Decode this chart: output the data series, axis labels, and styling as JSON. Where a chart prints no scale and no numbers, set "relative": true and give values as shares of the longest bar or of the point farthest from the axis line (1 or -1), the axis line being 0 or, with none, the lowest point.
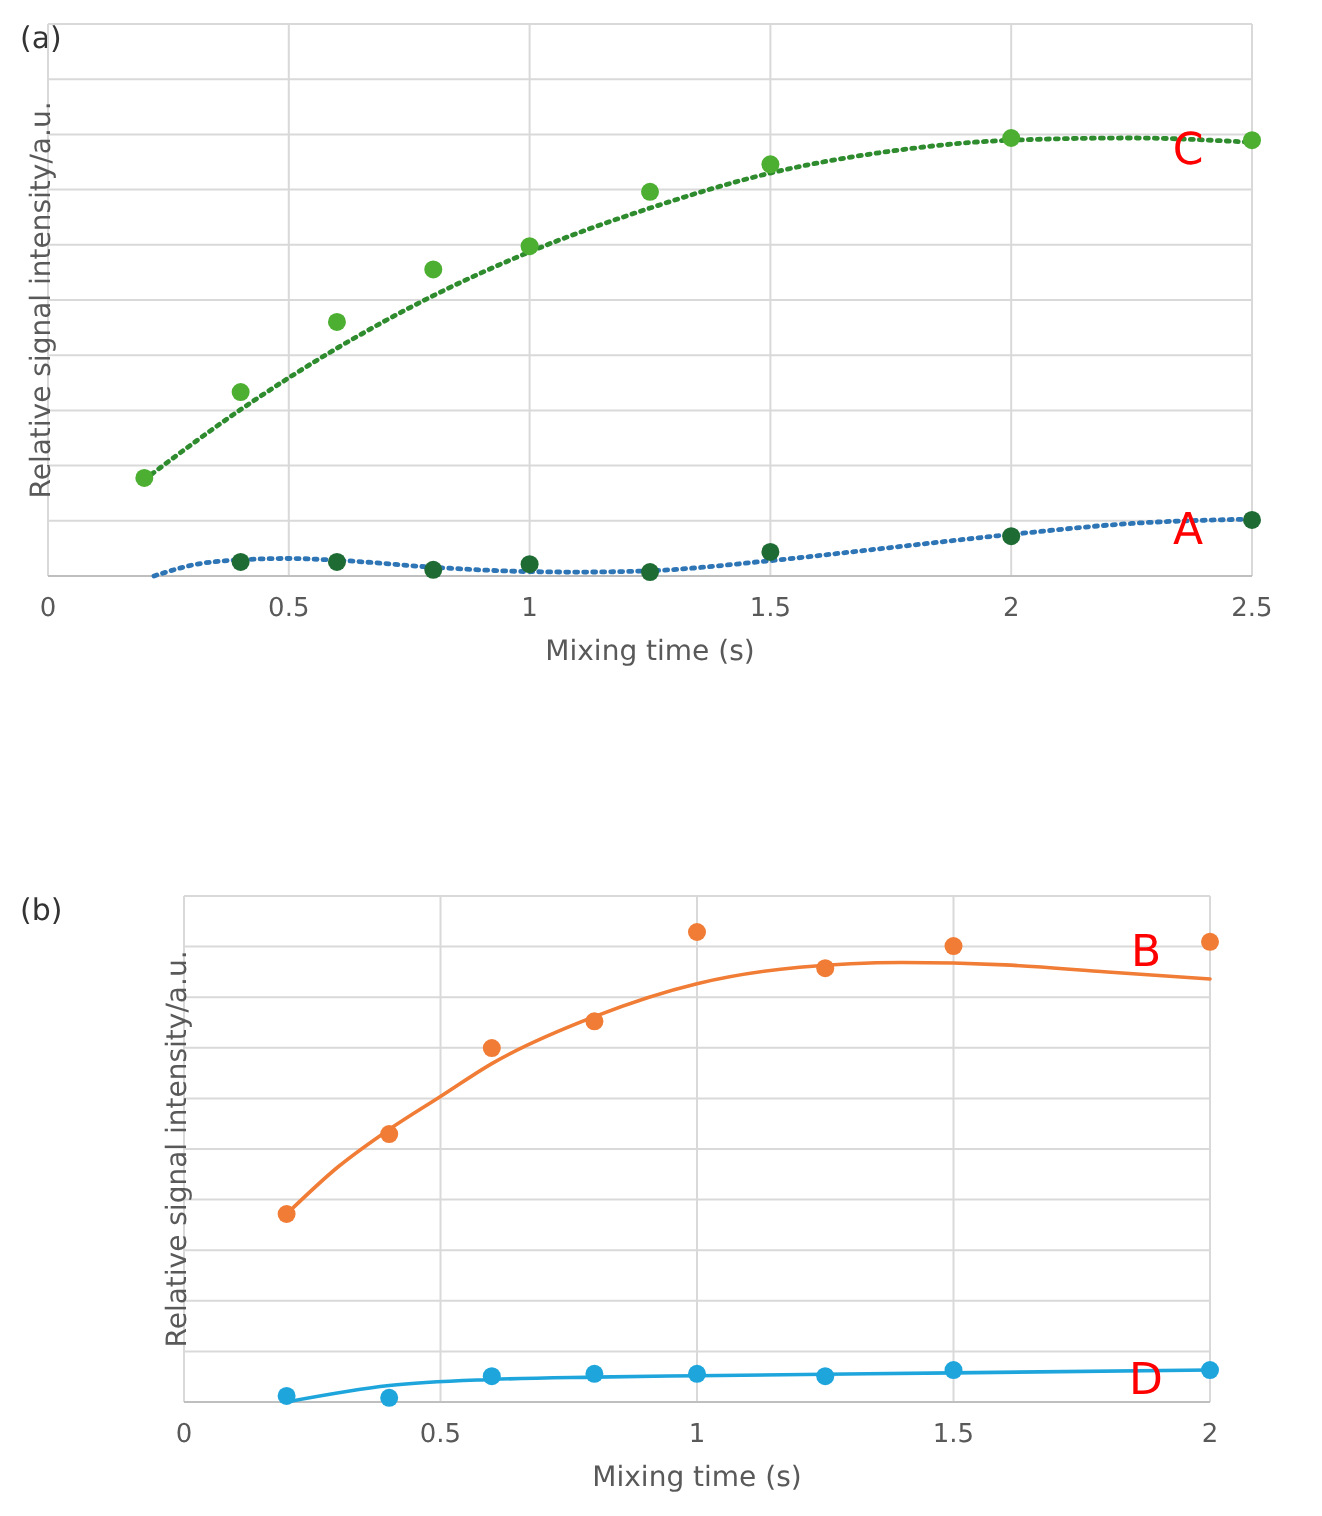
{
  "chart_data": [
    {
      "type": "scatter",
      "title": "(a)",
      "xlabel": "Mixing time (s)",
      "ylabel": "Relative signal intensity/a.u.",
      "relative": true,
      "xlim": [
        0,
        2.5
      ],
      "xticks": [
        0,
        0.5,
        1,
        1.5,
        2,
        2.5
      ],
      "tick_labels": "x",
      "grid": true,
      "legend": false,
      "marker": "circle",
      "series": [
        {
          "type": "line",
          "marker": "none",
          "line_style": "dotted",
          "color": "#2e8b2e",
          "x": [
            0.2,
            0.4,
            0.6,
            0.8,
            1.0,
            1.25,
            1.5,
            1.75,
            2.0,
            2.25,
            2.5
          ],
          "values": [
            0.22,
            0.38,
            0.52,
            0.64,
            0.74,
            0.84,
            0.92,
            0.97,
            0.995,
            1.0,
            0.99
          ]
        },
        {
          "type": "line",
          "marker": "none",
          "line_style": "dotted",
          "color": "#2e75b6",
          "x": [
            0.22,
            0.3,
            0.4,
            0.5,
            0.6,
            0.8,
            1.0,
            1.1,
            1.25,
            1.5,
            1.75,
            2.0,
            2.25,
            2.5
          ],
          "values": [
            0,
            0.025,
            0.037,
            0.04,
            0.036,
            0.02,
            0.01,
            0.009,
            0.012,
            0.035,
            0.065,
            0.095,
            0.12,
            0.13
          ]
        },
        {
          "name": "C",
          "color": "#4caf32",
          "x": [
            0.2,
            0.4,
            0.6,
            0.8,
            1.0,
            1.25,
            1.5,
            2.0,
            2.5
          ],
          "values": [
            0.224,
            0.42,
            0.58,
            0.7,
            0.753,
            0.877,
            0.94,
            1.0,
            0.995
          ]
        },
        {
          "name": "A",
          "color": "#1e6b34",
          "x": [
            0.4,
            0.6,
            0.8,
            1.0,
            1.25,
            1.5,
            2.0,
            2.5
          ],
          "values": [
            0.032,
            0.032,
            0.014,
            0.027,
            0.009,
            0.055,
            0.091,
            0.128
          ]
        }
      ]
    },
    {
      "type": "scatter",
      "title": "(b)",
      "xlabel": "Mixing time (s)",
      "ylabel": "Relative signal intensity/a.u.",
      "relative": true,
      "xlim": [
        0,
        2
      ],
      "xticks": [
        0,
        0.5,
        1,
        1.5,
        2
      ],
      "tick_labels": "x",
      "grid": true,
      "legend": false,
      "marker": "circle",
      "series": [
        {
          "type": "line",
          "marker": "none",
          "line_style": "solid",
          "color": "#f07c35",
          "x": [
            0.2,
            0.3,
            0.4,
            0.5,
            0.6,
            0.8,
            1.0,
            1.2,
            1.4,
            1.6,
            1.8,
            2.0
          ],
          "values": [
            0.4,
            0.5,
            0.58,
            0.65,
            0.72,
            0.82,
            0.89,
            0.925,
            0.935,
            0.93,
            0.915,
            0.9
          ]
        },
        {
          "type": "line",
          "marker": "none",
          "line_style": "solid",
          "color": "#1ea5dc",
          "x": [
            0.2,
            0.4,
            0.6,
            0.8,
            1.0,
            1.5,
            2.0
          ],
          "values": [
            0,
            0.035,
            0.048,
            0.053,
            0.056,
            0.062,
            0.068
          ]
        },
        {
          "name": "B",
          "color": "#f07c35",
          "x": [
            0.2,
            0.4,
            0.6,
            0.8,
            1.0,
            1.25,
            1.5,
            2.0
          ],
          "values": [
            0.4,
            0.57,
            0.753,
            0.81,
            1.0,
            0.923,
            0.97,
            0.979
          ]
        },
        {
          "name": "D",
          "color": "#1ea5dc",
          "x": [
            0.2,
            0.4,
            0.6,
            0.8,
            1.0,
            1.25,
            1.5,
            2.0
          ],
          "values": [
            0.013,
            0.009,
            0.055,
            0.06,
            0.06,
            0.055,
            0.068,
            0.068
          ]
        }
      ]
    }
  ]
}
